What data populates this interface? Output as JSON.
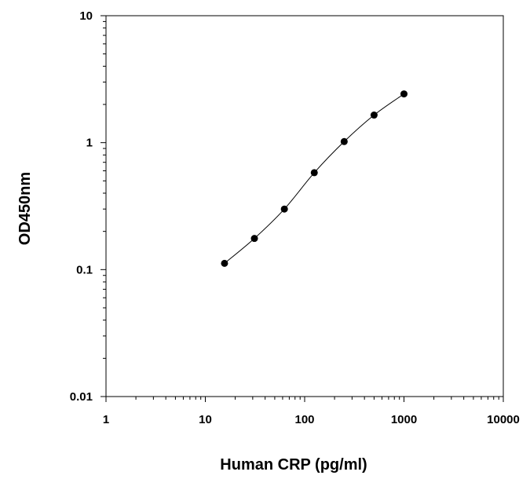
{
  "chart_data": {
    "type": "scatter",
    "title": "",
    "xlabel": "Human CRP (pg/ml)",
    "ylabel": "OD450nm",
    "x_scale": "log",
    "y_scale": "log",
    "xlim": [
      1,
      10000
    ],
    "ylim": [
      0.01,
      10
    ],
    "x_ticks": [
      "1",
      "10",
      "100",
      "1000",
      "10000"
    ],
    "y_ticks": [
      "0.01",
      "0.1",
      "1",
      "10"
    ],
    "grid": false,
    "legend": "none",
    "series": [
      {
        "x": [
          15.6,
          31.2,
          62.5,
          125,
          250,
          500,
          1000
        ],
        "y": [
          0.112,
          0.176,
          0.3,
          0.58,
          1.02,
          1.65,
          2.42
        ],
        "marker": "circle",
        "line": "smooth",
        "color": "#000000"
      }
    ]
  }
}
